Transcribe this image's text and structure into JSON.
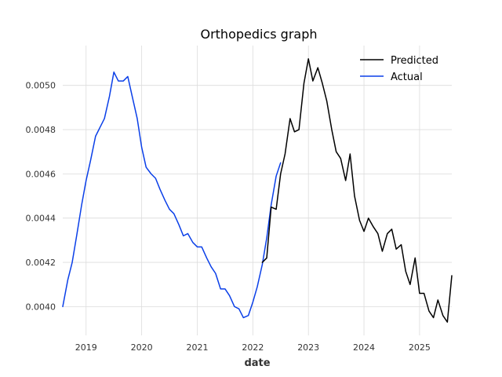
{
  "chart_data": {
    "type": "line",
    "title": "Orthopedics graph",
    "xlabel": "date",
    "ylabel": "",
    "xlim": [
      2018.58,
      2025.58
    ],
    "ylim": [
      0.00387,
      0.00518
    ],
    "x_ticks": [
      2019,
      2020,
      2021,
      2022,
      2023,
      2024,
      2025
    ],
    "x_tick_labels": [
      "2019",
      "2020",
      "2021",
      "2022",
      "2023",
      "2024",
      "2025"
    ],
    "y_ticks": [
      0.004,
      0.0042,
      0.0044,
      0.0046,
      0.0048,
      0.005
    ],
    "y_tick_labels": [
      "0.0040",
      "0.0042",
      "0.0044",
      "0.0046",
      "0.0048",
      "0.0050"
    ],
    "grid": true,
    "legend_position": "top-right",
    "series": [
      {
        "name": "Actual",
        "color": "#0a3fe8",
        "points": [
          [
            2018.58,
            0.004
          ],
          [
            2018.67,
            0.00412
          ],
          [
            2018.75,
            0.0042
          ],
          [
            2018.83,
            0.00432
          ],
          [
            2018.92,
            0.00446
          ],
          [
            2019.0,
            0.00457
          ],
          [
            2019.08,
            0.00466
          ],
          [
            2019.17,
            0.00477
          ],
          [
            2019.25,
            0.00481
          ],
          [
            2019.33,
            0.00485
          ],
          [
            2019.42,
            0.00495
          ],
          [
            2019.5,
            0.00506
          ],
          [
            2019.58,
            0.00502
          ],
          [
            2019.67,
            0.00502
          ],
          [
            2019.75,
            0.00504
          ],
          [
            2019.83,
            0.00495
          ],
          [
            2019.92,
            0.00485
          ],
          [
            2020.0,
            0.00472
          ],
          [
            2020.08,
            0.00463
          ],
          [
            2020.17,
            0.0046
          ],
          [
            2020.25,
            0.00458
          ],
          [
            2020.33,
            0.00453
          ],
          [
            2020.42,
            0.00448
          ],
          [
            2020.5,
            0.00444
          ],
          [
            2020.58,
            0.00442
          ],
          [
            2020.67,
            0.00437
          ],
          [
            2020.75,
            0.00432
          ],
          [
            2020.83,
            0.00433
          ],
          [
            2020.92,
            0.00429
          ],
          [
            2021.0,
            0.00427
          ],
          [
            2021.08,
            0.00427
          ],
          [
            2021.17,
            0.00422
          ],
          [
            2021.25,
            0.00418
          ],
          [
            2021.33,
            0.00415
          ],
          [
            2021.42,
            0.00408
          ],
          [
            2021.5,
            0.00408
          ],
          [
            2021.58,
            0.00405
          ],
          [
            2021.67,
            0.004
          ],
          [
            2021.75,
            0.00399
          ],
          [
            2021.83,
            0.00395
          ],
          [
            2021.92,
            0.00396
          ],
          [
            2022.0,
            0.00402
          ],
          [
            2022.08,
            0.00409
          ],
          [
            2022.17,
            0.00419
          ],
          [
            2022.25,
            0.00431
          ],
          [
            2022.33,
            0.00446
          ],
          [
            2022.42,
            0.00459
          ],
          [
            2022.5,
            0.00465
          ]
        ]
      },
      {
        "name": "Predicted",
        "color": "#000000",
        "points": [
          [
            2022.17,
            0.0042
          ],
          [
            2022.25,
            0.00422
          ],
          [
            2022.33,
            0.00445
          ],
          [
            2022.42,
            0.00444
          ],
          [
            2022.5,
            0.0046
          ],
          [
            2022.58,
            0.00469
          ],
          [
            2022.67,
            0.00485
          ],
          [
            2022.75,
            0.00479
          ],
          [
            2022.83,
            0.0048
          ],
          [
            2022.92,
            0.00501
          ],
          [
            2023.0,
            0.00512
          ],
          [
            2023.08,
            0.00502
          ],
          [
            2023.17,
            0.00508
          ],
          [
            2023.25,
            0.00501
          ],
          [
            2023.33,
            0.00493
          ],
          [
            2023.42,
            0.0048
          ],
          [
            2023.5,
            0.0047
          ],
          [
            2023.58,
            0.00467
          ],
          [
            2023.67,
            0.00457
          ],
          [
            2023.75,
            0.00469
          ],
          [
            2023.83,
            0.0045
          ],
          [
            2023.92,
            0.00439
          ],
          [
            2024.0,
            0.00434
          ],
          [
            2024.08,
            0.0044
          ],
          [
            2024.17,
            0.00436
          ],
          [
            2024.25,
            0.00433
          ],
          [
            2024.33,
            0.00425
          ],
          [
            2024.42,
            0.00433
          ],
          [
            2024.5,
            0.00435
          ],
          [
            2024.58,
            0.00426
          ],
          [
            2024.67,
            0.00428
          ],
          [
            2024.75,
            0.00416
          ],
          [
            2024.83,
            0.0041
          ],
          [
            2024.92,
            0.00422
          ],
          [
            2025.0,
            0.00406
          ],
          [
            2025.08,
            0.00406
          ],
          [
            2025.17,
            0.00398
          ],
          [
            2025.25,
            0.00395
          ],
          [
            2025.33,
            0.00403
          ],
          [
            2025.42,
            0.00396
          ],
          [
            2025.5,
            0.00393
          ],
          [
            2025.58,
            0.00414
          ]
        ]
      }
    ]
  }
}
